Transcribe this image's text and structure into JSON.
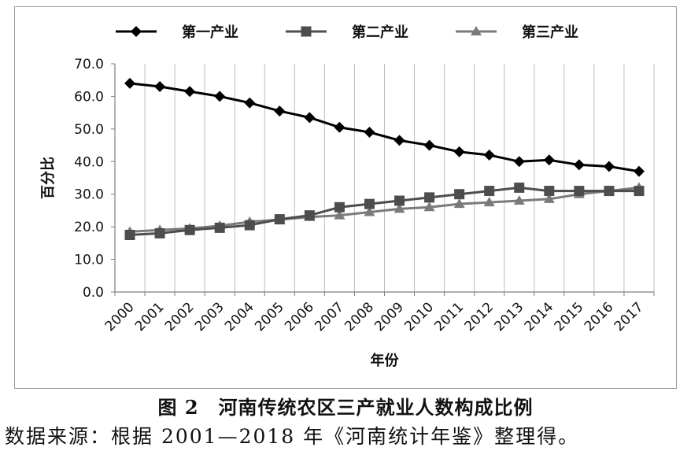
{
  "chart_data": {
    "type": "line",
    "ylabel": "百分比",
    "xlabel": "年份",
    "ylim": [
      0,
      70
    ],
    "y_ticks": [
      "0.0",
      "10.0",
      "20.0",
      "30.0",
      "40.0",
      "50.0",
      "60.0",
      "70.0"
    ],
    "categories": [
      "2000",
      "2001",
      "2002",
      "2003",
      "2004",
      "2005",
      "2006",
      "2007",
      "2008",
      "2009",
      "2010",
      "2011",
      "2012",
      "2013",
      "2014",
      "2015",
      "2016",
      "2017"
    ],
    "grid": "vertical",
    "legend": "top",
    "series": [
      {
        "name": "第一产业",
        "marker": "diamond",
        "color": "#000000",
        "values": [
          64.0,
          63.0,
          61.5,
          60.0,
          58.0,
          55.5,
          53.5,
          50.5,
          49.0,
          46.5,
          45.0,
          43.0,
          42.0,
          40.0,
          40.5,
          39.0,
          38.5,
          37.0
        ]
      },
      {
        "name": "第二产业",
        "marker": "square",
        "color": "#4d4d4d",
        "values": [
          17.5,
          18.0,
          19.0,
          19.7,
          20.5,
          22.3,
          23.5,
          26.0,
          27.0,
          28.0,
          29.0,
          30.0,
          31.0,
          32.0,
          31.0,
          31.0,
          31.0,
          31.0
        ]
      },
      {
        "name": "第三产业",
        "marker": "triangle",
        "color": "#7a7a7a",
        "values": [
          18.5,
          19.0,
          19.5,
          20.3,
          21.5,
          22.2,
          23.0,
          23.5,
          24.5,
          25.5,
          26.0,
          27.0,
          27.5,
          28.0,
          28.5,
          30.0,
          31.0,
          32.0
        ]
      }
    ]
  },
  "caption": "图 2　河南传统农区三产就业人数构成比例",
  "source_note": "数据来源：根据 2001—2018 年《河南统计年鉴》整理得。"
}
